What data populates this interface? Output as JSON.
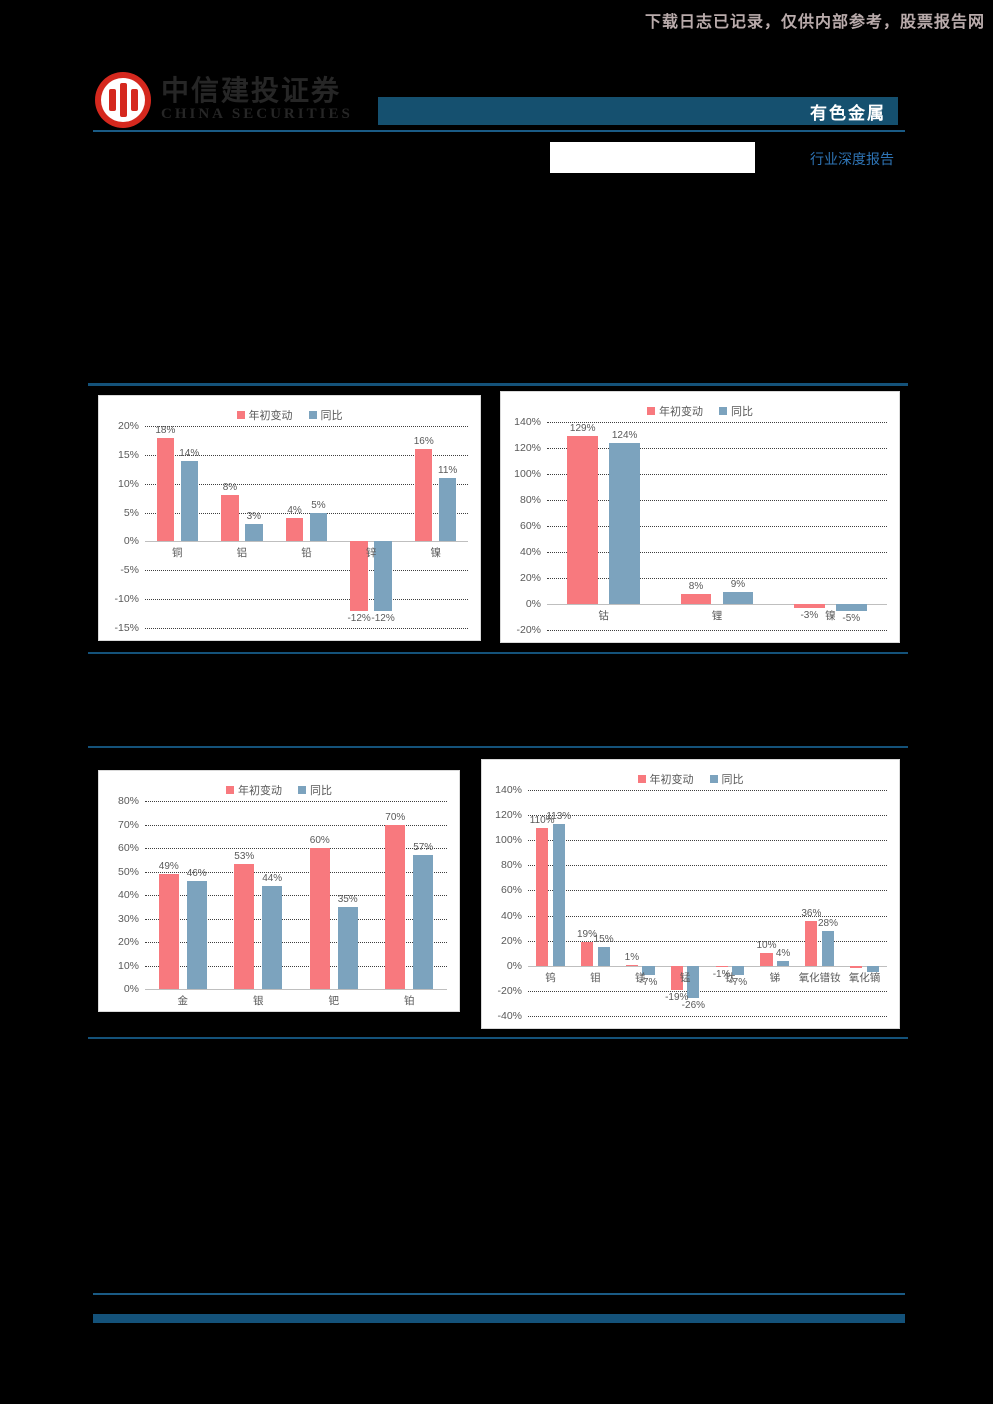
{
  "page": {
    "watermark": "下载日志已记录，仅供内部参考，股票报告网",
    "brand": {
      "cn": "中信建投证券",
      "en": "CHINA SECURITIES"
    },
    "header_badge": "有色金属",
    "report_type": "行业深度报告"
  },
  "colors": {
    "header_bar_blue": "#15506f",
    "divider_blue": "#14527a",
    "thin_line_blue": "#1a5b85",
    "bar_red": "#f8797e",
    "bar_blue": "#7ca3be",
    "logo_red": "#d5281e",
    "report_type_blue": "#2e74b5",
    "watermark_color": "#b9abab",
    "chart_text_gray": "#595959"
  },
  "chart_data": [
    {
      "type": "bar",
      "title": "",
      "legend": [
        "年初变动",
        "同比"
      ],
      "legend_position": "top",
      "grid": true,
      "categories": [
        "铜",
        "铝",
        "铅",
        "锌",
        "镍"
      ],
      "series": [
        {
          "name": "年初变动",
          "color": "#f8797e",
          "values": [
            18,
            8,
            4,
            -12,
            16
          ],
          "labels": [
            "18%",
            "8%",
            "4%",
            "-12%",
            "16%"
          ]
        },
        {
          "name": "同比",
          "color": "#7ca3be",
          "values": [
            14,
            3,
            5,
            -12,
            11
          ],
          "labels": [
            "14%",
            "3%",
            "5%",
            "-12%",
            "11%"
          ]
        }
      ],
      "ylim": [
        -15,
        20
      ],
      "ytick_step": 5
    },
    {
      "type": "bar",
      "title": "",
      "legend": [
        "年初变动",
        "同比"
      ],
      "legend_position": "top",
      "grid": true,
      "categories": [
        "钴",
        "锂",
        "镍"
      ],
      "series": [
        {
          "name": "年初变动",
          "color": "#f8797e",
          "values": [
            129,
            8,
            -3
          ],
          "labels": [
            "129%",
            "8%",
            "-3%"
          ]
        },
        {
          "name": "同比",
          "color": "#7ca3be",
          "values": [
            124,
            9,
            -5
          ],
          "labels": [
            "124%",
            "9%",
            "-5%"
          ]
        }
      ],
      "ylim": [
        -20,
        140
      ],
      "ytick_step": 20
    },
    {
      "type": "bar",
      "title": "",
      "legend": [
        "年初变动",
        "同比"
      ],
      "legend_position": "top",
      "grid": true,
      "categories": [
        "金",
        "银",
        "钯",
        "铂"
      ],
      "series": [
        {
          "name": "年初变动",
          "color": "#f8797e",
          "values": [
            49,
            53,
            60,
            70
          ],
          "labels": [
            "49%",
            "53%",
            "60%",
            "70%"
          ]
        },
        {
          "name": "同比",
          "color": "#7ca3be",
          "values": [
            46,
            44,
            35,
            57
          ],
          "labels": [
            "46%",
            "44%",
            "35%",
            "57%"
          ]
        }
      ],
      "ylim": [
        0,
        80
      ],
      "ytick_step": 10
    },
    {
      "type": "bar",
      "title": "",
      "legend": [
        "年初变动",
        "同比"
      ],
      "legend_position": "top",
      "grid": true,
      "categories": [
        "钨",
        "钼",
        "镁",
        "锰",
        "钛",
        "锑",
        "氧化镨钕",
        "氧化镝"
      ],
      "series": [
        {
          "name": "年初变动",
          "color": "#f8797e",
          "values": [
            110,
            19,
            1,
            -19,
            -1,
            10,
            36,
            -2
          ],
          "labels": [
            "110%",
            "19%",
            "1%",
            "-19%",
            "-1%",
            "10%",
            "36%",
            ""
          ]
        },
        {
          "name": "同比",
          "color": "#7ca3be",
          "values": [
            113,
            15,
            -7,
            -26,
            -7,
            4,
            28,
            -5
          ],
          "labels": [
            "113%",
            "15%",
            "-7%",
            "-26%",
            "-7%",
            "4%",
            "28%",
            ""
          ]
        }
      ],
      "ylim": [
        -40,
        140
      ],
      "ytick_step": 20
    }
  ]
}
